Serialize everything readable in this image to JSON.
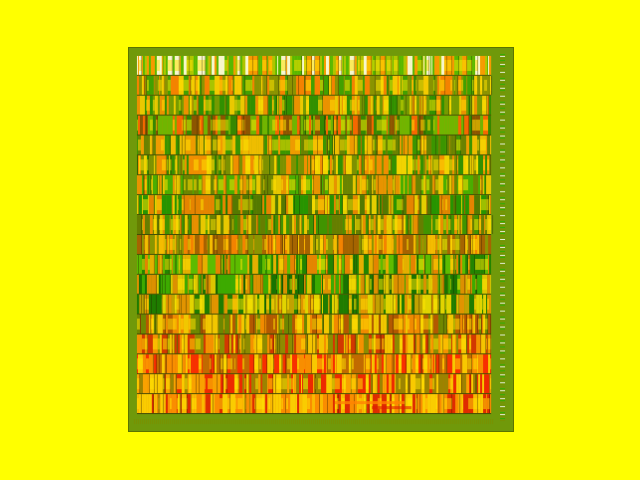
{
  "screen": {
    "background": "#ffff00"
  },
  "texture": {
    "description_visible": false,
    "band_count": 18,
    "palette": {
      "dark_green": "#0a6a00",
      "green": "#24b000",
      "olive": "#7a9000",
      "gold": "#d2a400",
      "orange": "#ff8500",
      "red": "#e01c00",
      "yellow": "#ffe100",
      "white": "#ffffff",
      "black": "#1a1000"
    },
    "bands": [
      {
        "base": "#d8d400",
        "accents": [
          "#ffffff",
          "#a4c000",
          "#ff8a00",
          "#38b000"
        ]
      },
      {
        "base": "#c8a000",
        "accents": [
          "#ff7a00",
          "#20a000",
          "#7a9000",
          "#ffd400"
        ]
      },
      {
        "base": "#9ab000",
        "accents": [
          "#168800",
          "#ffd000",
          "#ff8a00",
          "#6d9500"
        ]
      },
      {
        "base": "#d08000",
        "accents": [
          "#ff6000",
          "#0e8a00",
          "#57c200",
          "#7a4a00"
        ]
      },
      {
        "base": "#aaa200",
        "accents": [
          "#ff9a00",
          "#1f9200",
          "#5a7a00",
          "#ffc400"
        ]
      },
      {
        "base": "#b9a000",
        "accents": [
          "#ff8a00",
          "#138d00",
          "#ffe000",
          "#6d8d00"
        ]
      },
      {
        "base": "#8aa000",
        "accents": [
          "#ff9000",
          "#38b200",
          "#617d00",
          "#ffd100"
        ]
      },
      {
        "base": "#7ea800",
        "accents": [
          "#ff7a00",
          "#128e00",
          "#4a6d00",
          "#ffd700"
        ]
      },
      {
        "base": "#8c9700",
        "accents": [
          "#ff8d00",
          "#2d9400",
          "#5d7800",
          "#ffd500"
        ]
      },
      {
        "base": "#c87c00",
        "accents": [
          "#ff8500",
          "#7a9c00",
          "#ffcc00",
          "#9c5e00"
        ]
      },
      {
        "base": "#7cab00",
        "accents": [
          "#ff7a00",
          "#0b7a00",
          "#55c000",
          "#ffb000"
        ]
      },
      {
        "base": "#4f8f00",
        "accents": [
          "#0b6b00",
          "#38b000",
          "#ff9000",
          "#ffd300"
        ]
      },
      {
        "base": "#6a9900",
        "accents": [
          "#0d7400",
          "#d8a400",
          "#ff9200",
          "#ffe200"
        ]
      },
      {
        "base": "#b78c00",
        "accents": [
          "#ff8a00",
          "#5a8600",
          "#ffd600",
          "#b14b00"
        ]
      },
      {
        "base": "#c76d00",
        "accents": [
          "#ff9a00",
          "#d52a00",
          "#ffda00",
          "#7d9400"
        ]
      },
      {
        "base": "#d96400",
        "accents": [
          "#ff2200",
          "#ff9800",
          "#ffe100",
          "#ba6d00"
        ]
      },
      {
        "base": "#de5f00",
        "accents": [
          "#f01d00",
          "#ffb100",
          "#ffe500",
          "#8a8c00"
        ]
      },
      {
        "base": "#e35f00",
        "accents": [
          "#ff9800",
          "#ffe700",
          "#dd1e00",
          "#ffd000"
        ]
      }
    ]
  }
}
